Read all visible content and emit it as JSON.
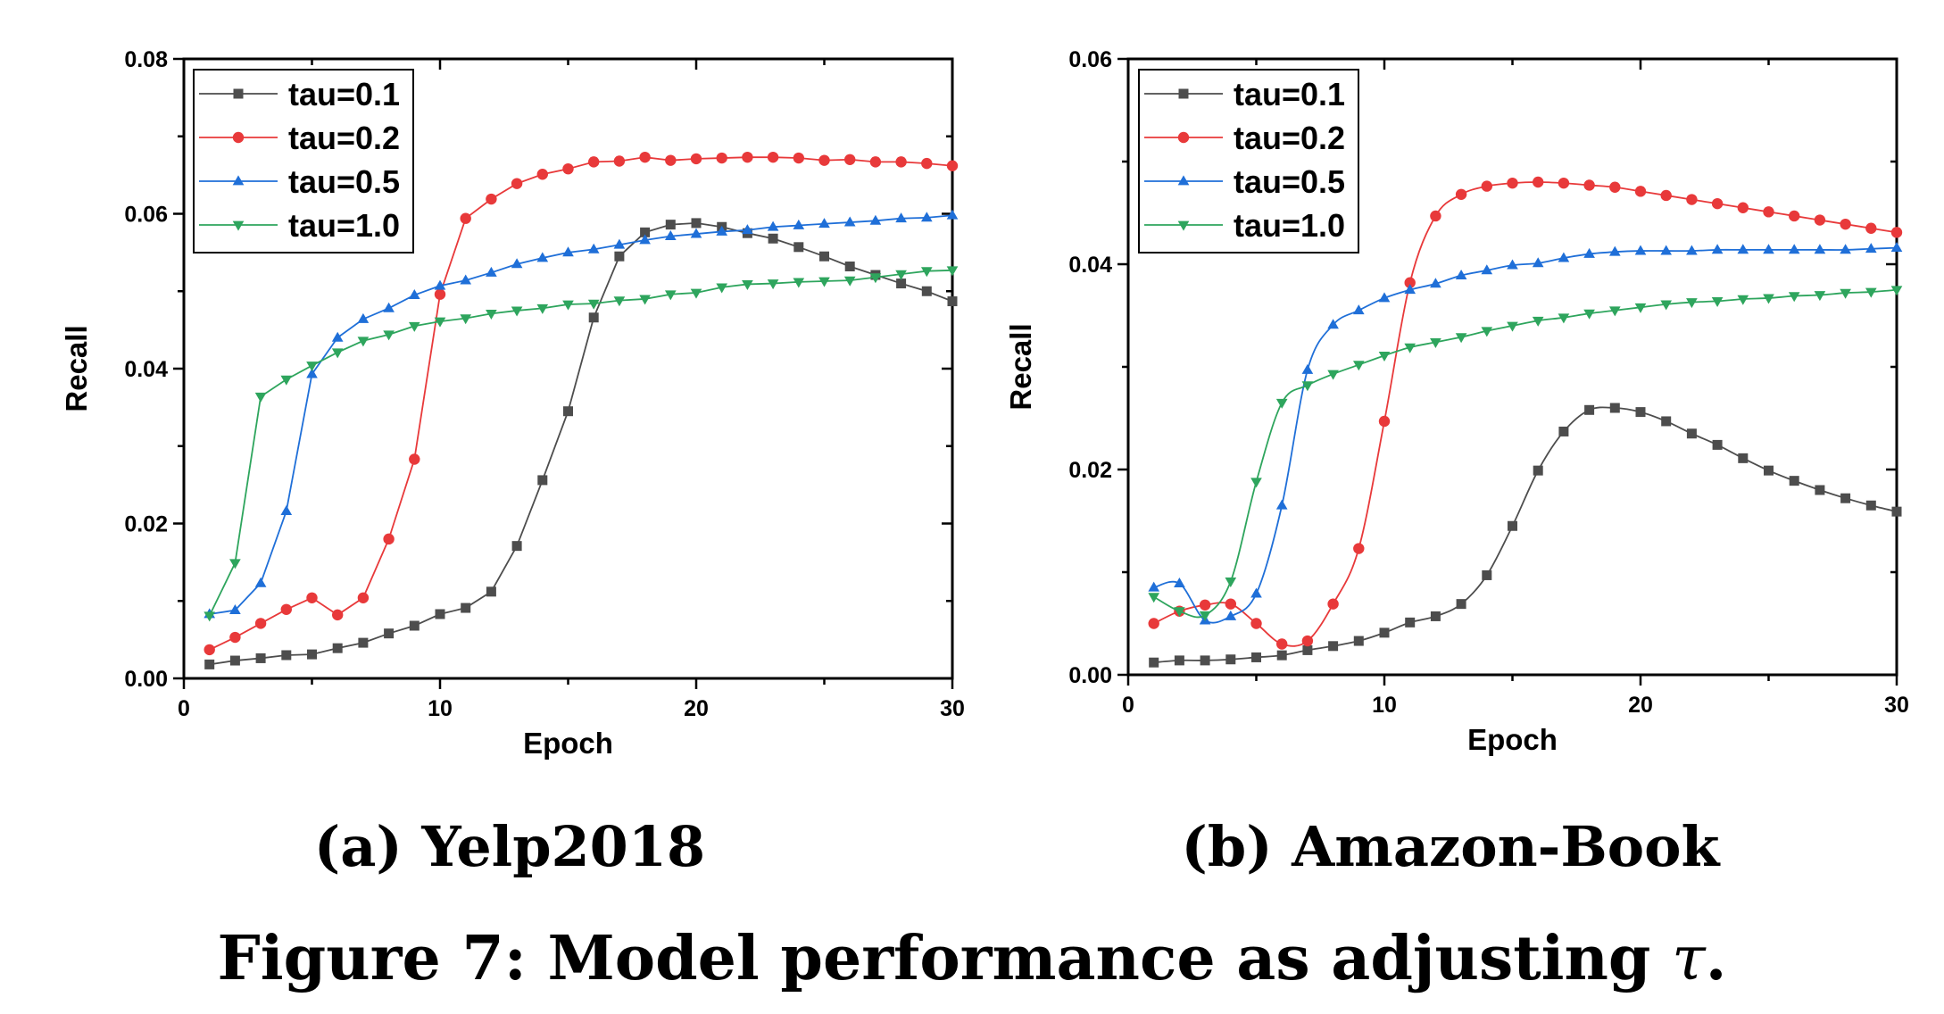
{
  "figure_caption": {
    "prefix": "Figure 7: Model performance as adjusting ",
    "symbol": "τ",
    "suffix": "."
  },
  "colors": {
    "tau=0.1": "#4d4d4d",
    "tau=0.2": "#e8393a",
    "tau=0.5": "#1f6fd8",
    "tau=1.0": "#2ea55d"
  },
  "chart_data": [
    {
      "type": "line",
      "subcaption": "(a) Yelp2018",
      "title": "",
      "xlabel": "Epoch",
      "ylabel": "Recall",
      "xlim": [
        0,
        30
      ],
      "ylim": [
        0,
        0.08
      ],
      "xticks": [
        "0",
        "10",
        "20",
        "30"
      ],
      "xtick_values": [
        0,
        10,
        20,
        30
      ],
      "yticks": [
        "0.00",
        "0.02",
        "0.04",
        "0.06",
        "0.08"
      ],
      "ytick_values": [
        0,
        0.02,
        0.04,
        0.06,
        0.08
      ],
      "smooth": false,
      "legend_position": "top-left",
      "grid": false,
      "x": [
        1,
        2,
        3,
        4,
        5,
        6,
        7,
        8,
        9,
        10,
        11,
        12,
        13,
        14,
        15,
        16,
        17,
        18,
        19,
        20,
        21,
        22,
        23,
        24,
        25,
        26,
        27,
        28,
        29,
        30
      ],
      "series": [
        {
          "name": "tau=0.1",
          "marker": "square",
          "values": [
            0.0018,
            0.0023,
            0.0026,
            0.003,
            0.0031,
            0.0039,
            0.0046,
            0.0058,
            0.0068,
            0.0083,
            0.0091,
            0.0112,
            0.0171,
            0.0256,
            0.0345,
            0.0466,
            0.0545,
            0.0576,
            0.0586,
            0.0588,
            0.0583,
            0.0575,
            0.0568,
            0.0557,
            0.0545,
            0.0532,
            0.0521,
            0.051,
            0.05,
            0.0487
          ]
        },
        {
          "name": "tau=0.2",
          "marker": "circle",
          "values": [
            0.0037,
            0.0053,
            0.0071,
            0.0089,
            0.0104,
            0.0082,
            0.0104,
            0.018,
            0.0283,
            0.0496,
            0.0594,
            0.0619,
            0.0639,
            0.0651,
            0.0658,
            0.0667,
            0.0668,
            0.0673,
            0.0669,
            0.0671,
            0.0672,
            0.0673,
            0.0673,
            0.0672,
            0.0669,
            0.067,
            0.0667,
            0.0667,
            0.0665,
            0.0662
          ]
        },
        {
          "name": "tau=0.5",
          "marker": "triangle-up",
          "values": [
            0.0083,
            0.0088,
            0.0123,
            0.0216,
            0.0393,
            0.044,
            0.0464,
            0.0478,
            0.0495,
            0.0507,
            0.0514,
            0.0524,
            0.0535,
            0.0543,
            0.055,
            0.0554,
            0.056,
            0.0566,
            0.0571,
            0.0574,
            0.0577,
            0.0579,
            0.0583,
            0.0585,
            0.0587,
            0.0589,
            0.0591,
            0.0594,
            0.0595,
            0.0598
          ]
        },
        {
          "name": "tau=1.0",
          "marker": "triangle-down",
          "values": [
            0.0081,
            0.0149,
            0.0364,
            0.0386,
            0.0404,
            0.0421,
            0.0436,
            0.0444,
            0.0455,
            0.0461,
            0.0465,
            0.0471,
            0.0475,
            0.0478,
            0.0483,
            0.0484,
            0.0488,
            0.049,
            0.0496,
            0.0498,
            0.0505,
            0.0509,
            0.051,
            0.0512,
            0.0513,
            0.0514,
            0.0518,
            0.0522,
            0.0526,
            0.0527
          ]
        }
      ]
    },
    {
      "type": "line",
      "subcaption": "(b) Amazon-Book",
      "title": "",
      "xlabel": "Epoch",
      "ylabel": "Recall",
      "xlim": [
        0,
        30
      ],
      "ylim": [
        0,
        0.06
      ],
      "xticks": [
        "0",
        "10",
        "20",
        "30"
      ],
      "xtick_values": [
        0,
        10,
        20,
        30
      ],
      "yticks": [
        "0.00",
        "0.02",
        "0.04",
        "0.06"
      ],
      "ytick_values": [
        0,
        0.02,
        0.04,
        0.06
      ],
      "smooth": true,
      "legend_position": "top-left",
      "grid": false,
      "x": [
        1,
        2,
        3,
        4,
        5,
        6,
        7,
        8,
        9,
        10,
        11,
        12,
        13,
        14,
        15,
        16,
        17,
        18,
        19,
        20,
        21,
        22,
        23,
        24,
        25,
        26,
        27,
        28,
        29,
        30
      ],
      "series": [
        {
          "name": "tau=0.1",
          "marker": "square",
          "values": [
            0.0012,
            0.0014,
            0.0014,
            0.0015,
            0.0017,
            0.0019,
            0.0024,
            0.0028,
            0.0033,
            0.0041,
            0.0051,
            0.0057,
            0.0069,
            0.0097,
            0.0145,
            0.0199,
            0.0237,
            0.0258,
            0.026,
            0.0256,
            0.0247,
            0.0235,
            0.0224,
            0.0211,
            0.0199,
            0.0189,
            0.018,
            0.0172,
            0.0165,
            0.0159
          ]
        },
        {
          "name": "tau=0.2",
          "marker": "circle",
          "values": [
            0.005,
            0.0062,
            0.0068,
            0.0069,
            0.005,
            0.003,
            0.0033,
            0.0069,
            0.0123,
            0.0247,
            0.0382,
            0.0447,
            0.0468,
            0.0476,
            0.0479,
            0.048,
            0.0479,
            0.0477,
            0.0475,
            0.0471,
            0.0467,
            0.0463,
            0.0459,
            0.0455,
            0.0451,
            0.0447,
            0.0443,
            0.0439,
            0.0435,
            0.0431
          ]
        },
        {
          "name": "tau=0.5",
          "marker": "triangle-up",
          "values": [
            0.0085,
            0.0089,
            0.0053,
            0.0057,
            0.0079,
            0.0165,
            0.0297,
            0.0341,
            0.0355,
            0.0367,
            0.0375,
            0.0381,
            0.0389,
            0.0394,
            0.0399,
            0.0401,
            0.0406,
            0.041,
            0.0412,
            0.0413,
            0.0413,
            0.0413,
            0.0414,
            0.0414,
            0.0414,
            0.0414,
            0.0414,
            0.0414,
            0.0415,
            0.0416
          ]
        },
        {
          "name": "tau=1.0",
          "marker": "triangle-down",
          "values": [
            0.0076,
            0.0062,
            0.0058,
            0.0091,
            0.0188,
            0.0265,
            0.0282,
            0.0293,
            0.0302,
            0.0311,
            0.0319,
            0.0324,
            0.0329,
            0.0335,
            0.034,
            0.0345,
            0.0348,
            0.0352,
            0.0355,
            0.0358,
            0.0361,
            0.0363,
            0.0364,
            0.0366,
            0.0367,
            0.0369,
            0.037,
            0.0372,
            0.0373,
            0.0375
          ]
        }
      ]
    }
  ]
}
